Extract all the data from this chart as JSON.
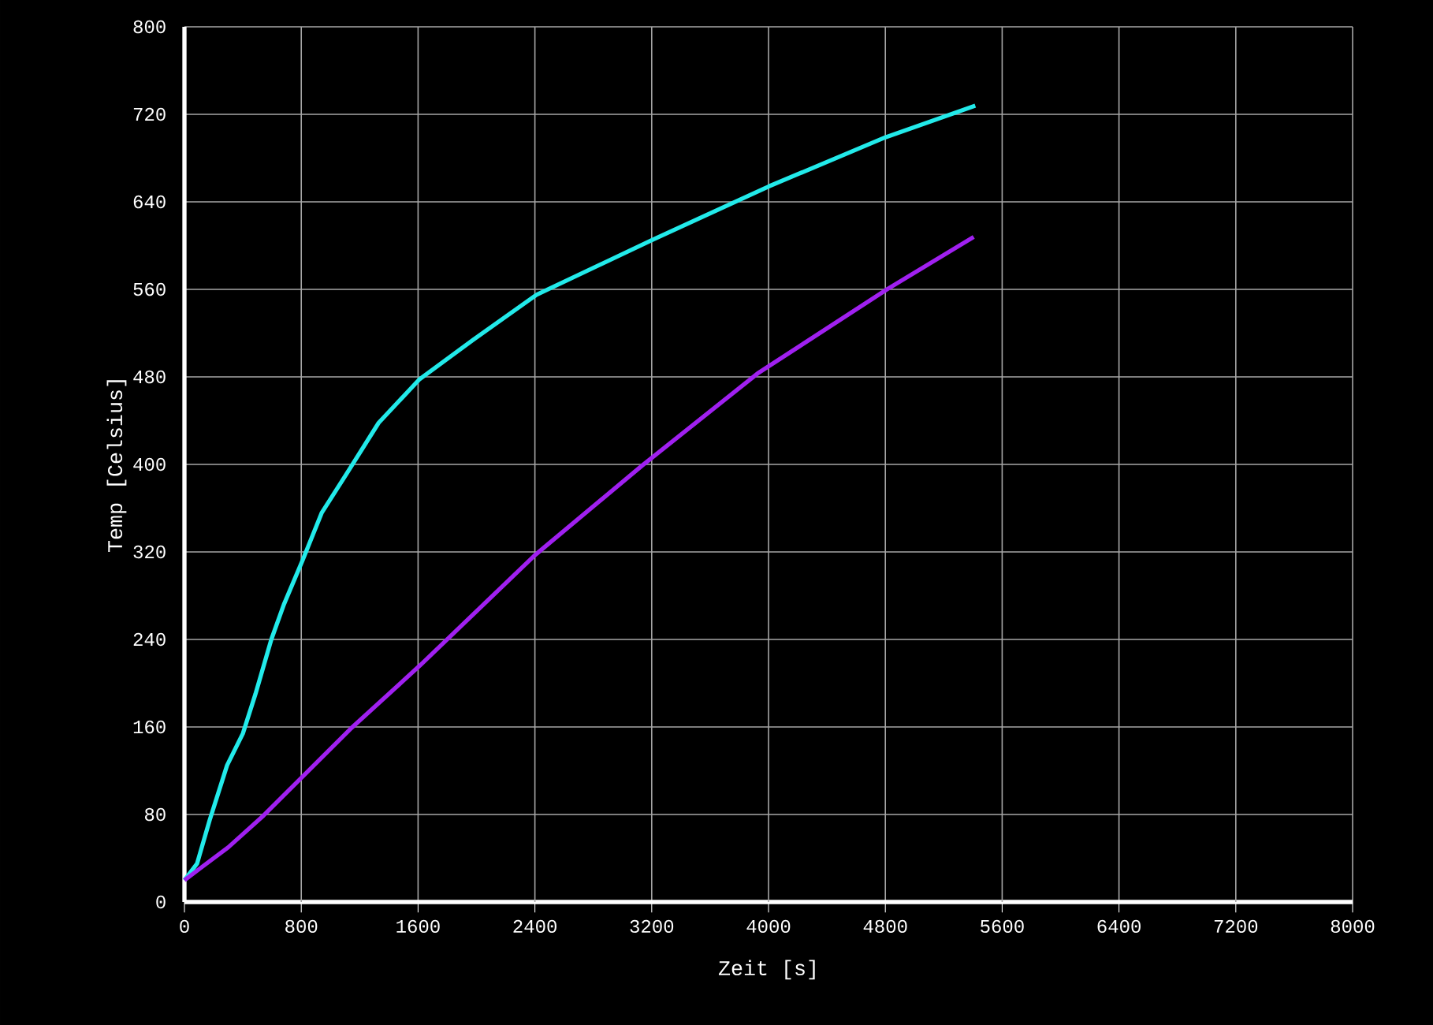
{
  "chart_data": {
    "type": "line",
    "xlabel": "Zeit [s]",
    "ylabel": "Temp [Celsius]",
    "xlim": [
      0,
      8000
    ],
    "ylim": [
      0,
      800
    ],
    "xticks": [
      0,
      800,
      1600,
      2400,
      3200,
      4000,
      4800,
      5600,
      6400,
      7200,
      8000
    ],
    "yticks": [
      0,
      80,
      160,
      240,
      320,
      400,
      480,
      560,
      640,
      720,
      800
    ],
    "grid": true,
    "series": [
      {
        "color": "#22eaea",
        "x": [
          0,
          86,
          173,
          292,
          400,
          486,
          595,
          681,
          811,
          941,
          1113,
          1330,
          1611,
          1978,
          2411,
          3200,
          4000,
          4800,
          5416
        ],
        "values": [
          20,
          35,
          75,
          125,
          154,
          190,
          240,
          272,
          313,
          356,
          392,
          438,
          478,
          514,
          555,
          605,
          654,
          699,
          728
        ]
      },
      {
        "color": "#a020f0",
        "x": [
          0,
          300,
          541,
          1135,
          1611,
          2400,
          3135,
          3924,
          4811,
          5405
        ],
        "values": [
          20,
          50,
          79,
          158,
          216,
          317,
          399,
          483,
          560,
          608
        ]
      }
    ]
  }
}
